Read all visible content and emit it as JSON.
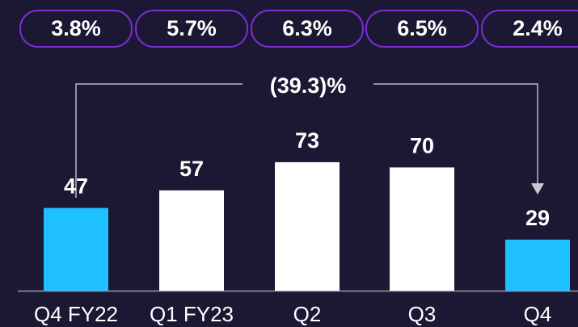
{
  "chart_data": {
    "type": "bar",
    "categories": [
      "Q4 FY22",
      "Q1 FY23",
      "Q2",
      "Q3",
      "Q4"
    ],
    "values": [
      47,
      57,
      73,
      70,
      29
    ],
    "colors": [
      "#1fc0ff",
      "#ffffff",
      "#ffffff",
      "#ffffff",
      "#1fc0ff"
    ],
    "annotations": [
      "3.8%",
      "5.7%",
      "6.3%",
      "6.5%",
      "2.4%"
    ],
    "change_label": "(39.3)%"
  }
}
